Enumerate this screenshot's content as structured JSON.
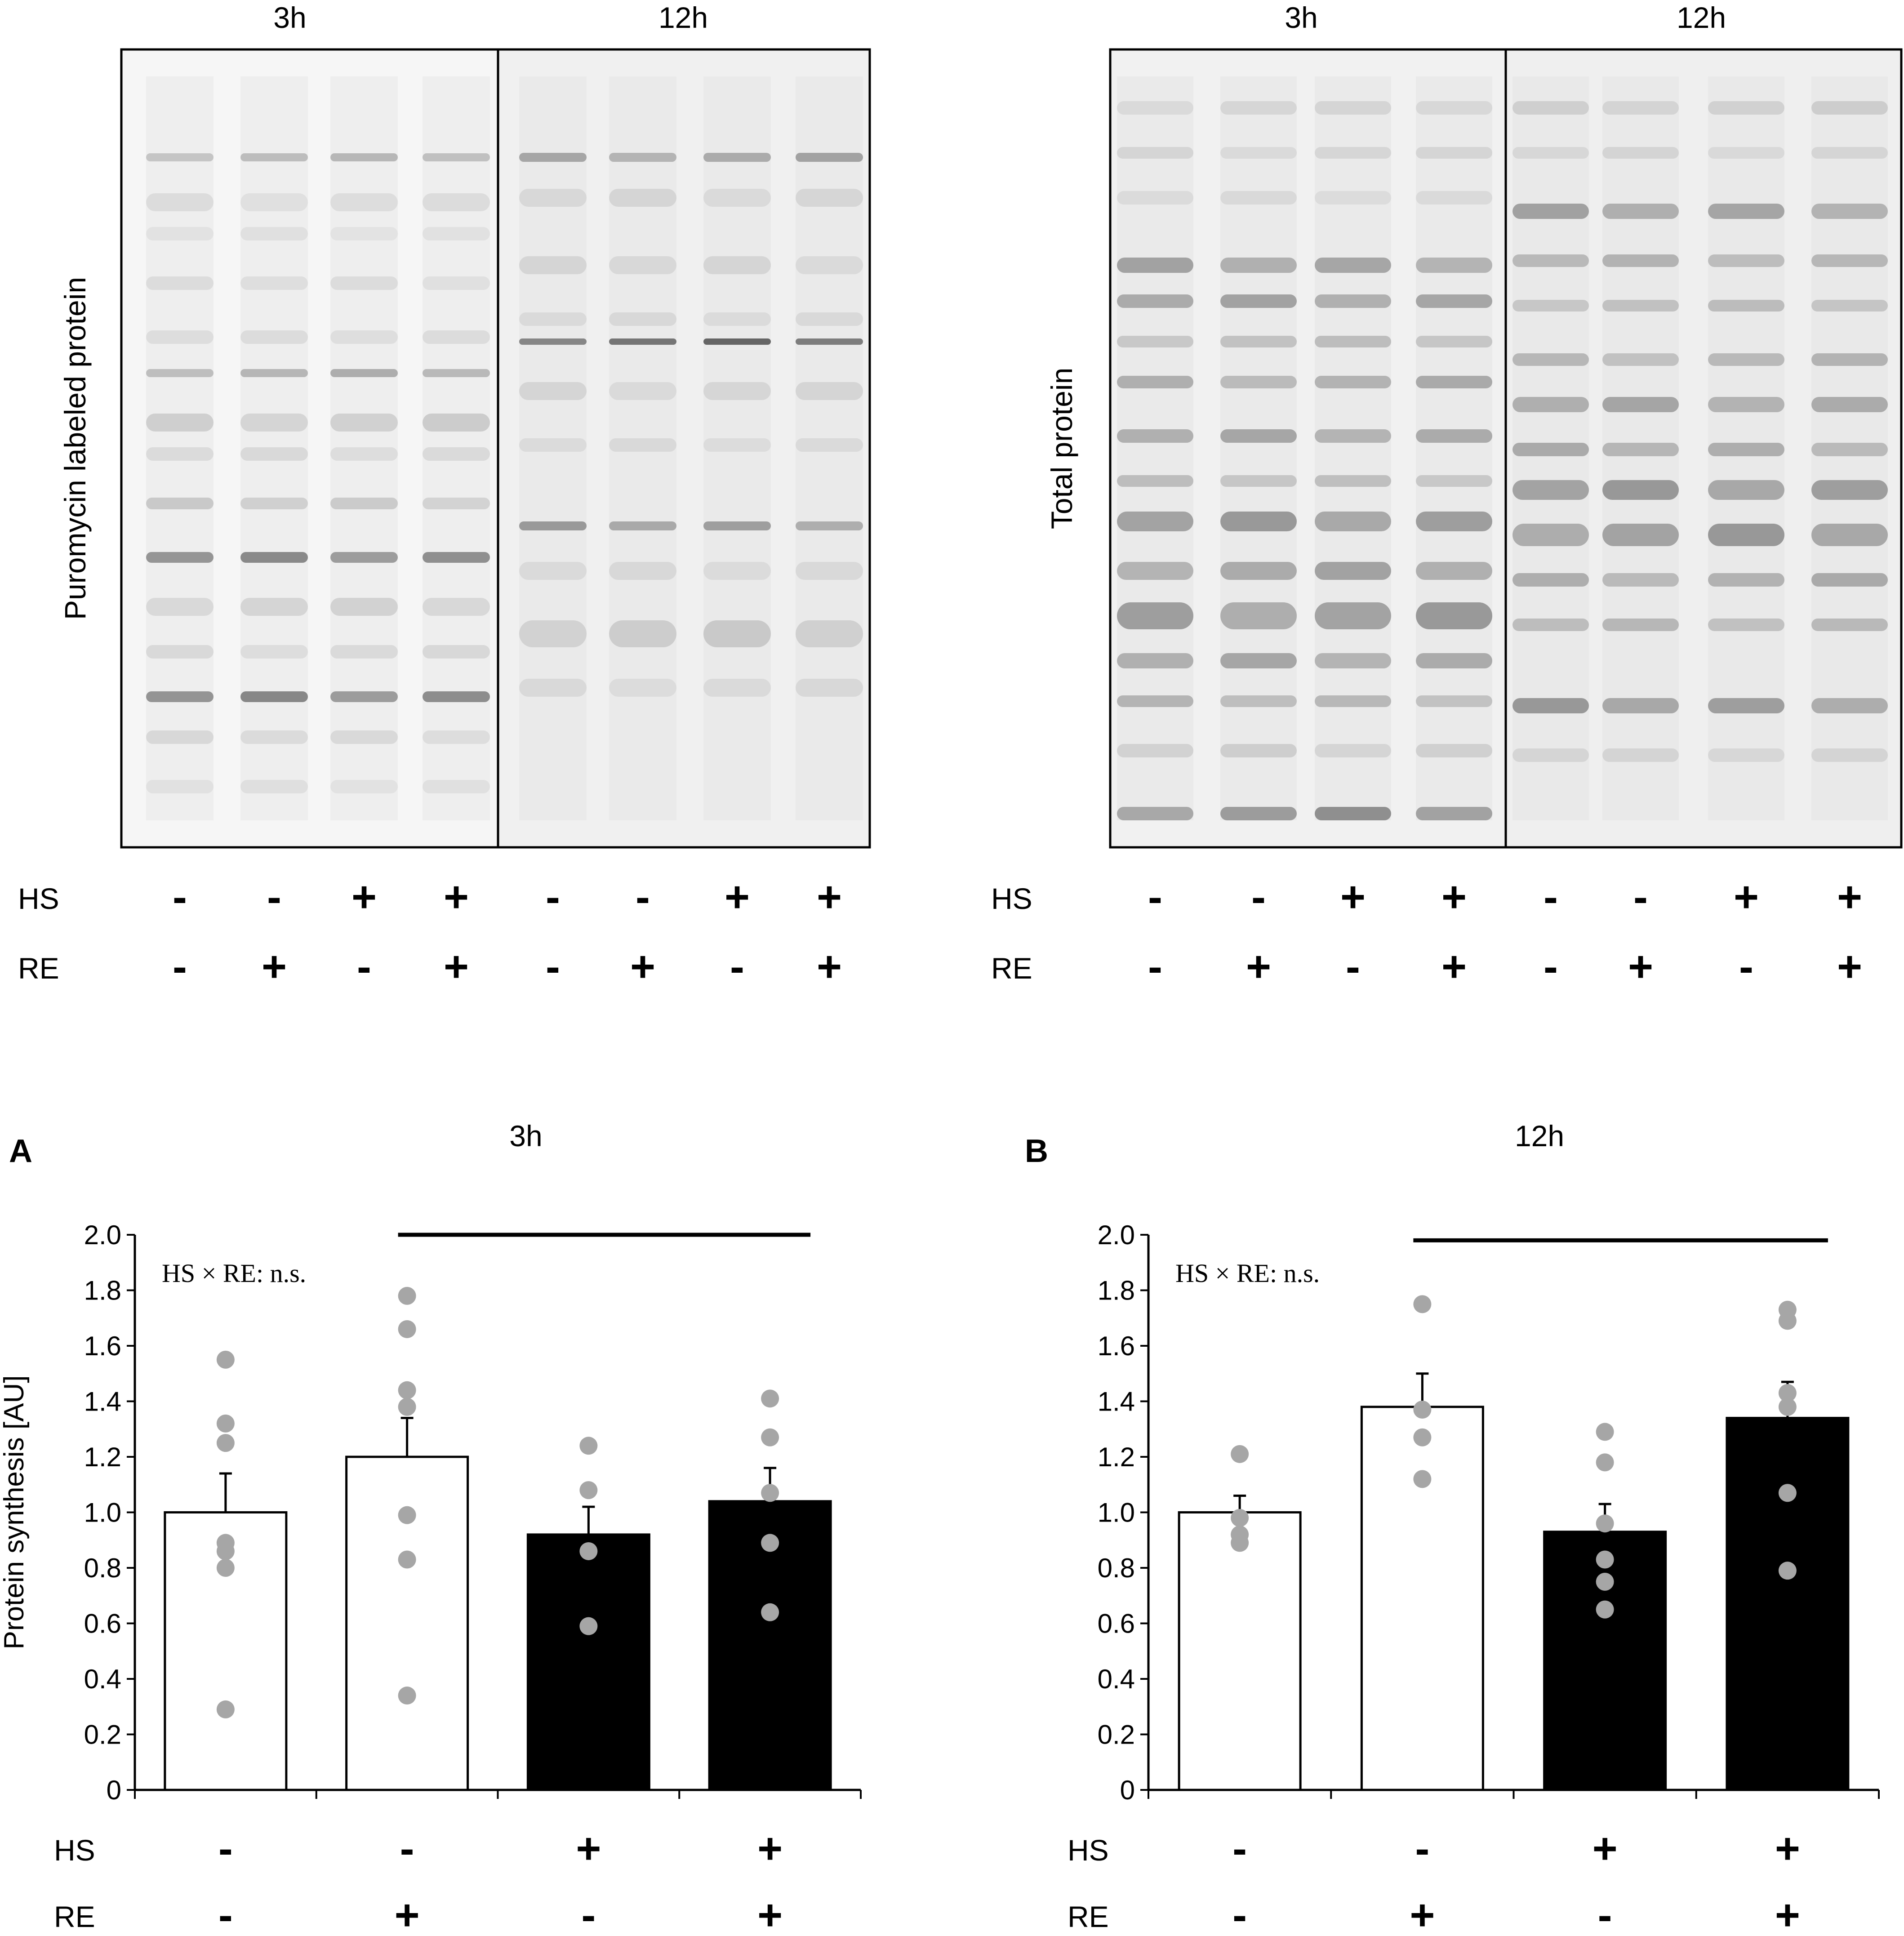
{
  "blots": [
    {
      "id": "puromycin",
      "ylabel": "Puromycin labeled protein",
      "time_labels": [
        "3h",
        "12h"
      ],
      "lane_count": 8,
      "row_labels": [
        "HS",
        "RE"
      ],
      "hs_signs": [
        "-",
        "-",
        "+",
        "+",
        "-",
        "-",
        "+",
        "+"
      ],
      "re_signs": [
        "-",
        "+",
        "-",
        "+",
        "-",
        "+",
        "-",
        "+"
      ]
    },
    {
      "id": "total",
      "ylabel": "Total protein",
      "time_labels": [
        "3h",
        "12h"
      ],
      "lane_count": 8,
      "row_labels": [
        "HS",
        "RE"
      ],
      "hs_signs": [
        "-",
        "-",
        "+",
        "+",
        "-",
        "-",
        "+",
        "+"
      ],
      "re_signs": [
        "-",
        "+",
        "-",
        "+",
        "-",
        "+",
        "-",
        "+"
      ]
    }
  ],
  "chart_data": [
    {
      "type": "bar",
      "panel_letter": "A",
      "title": "3h",
      "ylabel": "Protein synthesis [AU]",
      "ylim": [
        0,
        2.0
      ],
      "yticks": [
        "0",
        "0.2",
        "0.4",
        "0.6",
        "0.8",
        "1.0",
        "1.2",
        "1.4",
        "1.6",
        "1.8",
        "2.0"
      ],
      "annotation": "HS × RE: n.s.",
      "categories": [
        {
          "HS": "-",
          "RE": "-"
        },
        {
          "HS": "-",
          "RE": "+"
        },
        {
          "HS": "+",
          "RE": "-"
        },
        {
          "HS": "+",
          "RE": "+"
        }
      ],
      "row_labels": [
        "HS",
        "RE"
      ],
      "values": [
        1.0,
        1.2,
        0.92,
        1.04
      ],
      "errors": [
        0.14,
        0.14,
        0.1,
        0.12
      ],
      "fills": [
        "#ffffff",
        "#ffffff",
        "#000000",
        "#000000"
      ],
      "points": [
        [
          1.55,
          1.32,
          1.25,
          0.89,
          0.86,
          0.8,
          0.29
        ],
        [
          1.78,
          1.66,
          1.44,
          1.38,
          0.99,
          0.83,
          0.34
        ],
        [
          1.24,
          1.08,
          0.86,
          0.59
        ],
        [
          1.41,
          1.27,
          1.07,
          0.89,
          0.64
        ]
      ],
      "significance_bar": {
        "from_category": 1,
        "to_category": 3,
        "y": 2.0
      },
      "grid": false
    },
    {
      "type": "bar",
      "panel_letter": "B",
      "title": "12h",
      "ylabel": "",
      "ylim": [
        0,
        2.0
      ],
      "yticks": [
        "0",
        "0.2",
        "0.4",
        "0.6",
        "0.8",
        "1.0",
        "1.2",
        "1.4",
        "1.6",
        "1.8",
        "2.0"
      ],
      "annotation": "HS × RE: n.s.",
      "categories": [
        {
          "HS": "-",
          "RE": "-"
        },
        {
          "HS": "-",
          "RE": "+"
        },
        {
          "HS": "+",
          "RE": "-"
        },
        {
          "HS": "+",
          "RE": "+"
        }
      ],
      "row_labels": [
        "HS",
        "RE"
      ],
      "values": [
        1.0,
        1.38,
        0.93,
        1.34
      ],
      "errors": [
        0.06,
        0.12,
        0.1,
        0.13
      ],
      "fills": [
        "#ffffff",
        "#ffffff",
        "#000000",
        "#000000"
      ],
      "points": [
        [
          1.21,
          0.98,
          0.92,
          0.89
        ],
        [
          1.75,
          1.37,
          1.27,
          1.12
        ],
        [
          1.29,
          1.18,
          0.96,
          0.83,
          0.75,
          0.65
        ],
        [
          1.73,
          1.69,
          1.43,
          1.38,
          1.07,
          0.79
        ]
      ],
      "significance_bar": {
        "from_category": 1,
        "to_category": 3,
        "y": 1.98
      },
      "grid": false
    }
  ],
  "colors": {
    "axis": "#000000",
    "point": "#a6a6a6",
    "bar_white": "#ffffff",
    "bar_black": "#000000"
  }
}
